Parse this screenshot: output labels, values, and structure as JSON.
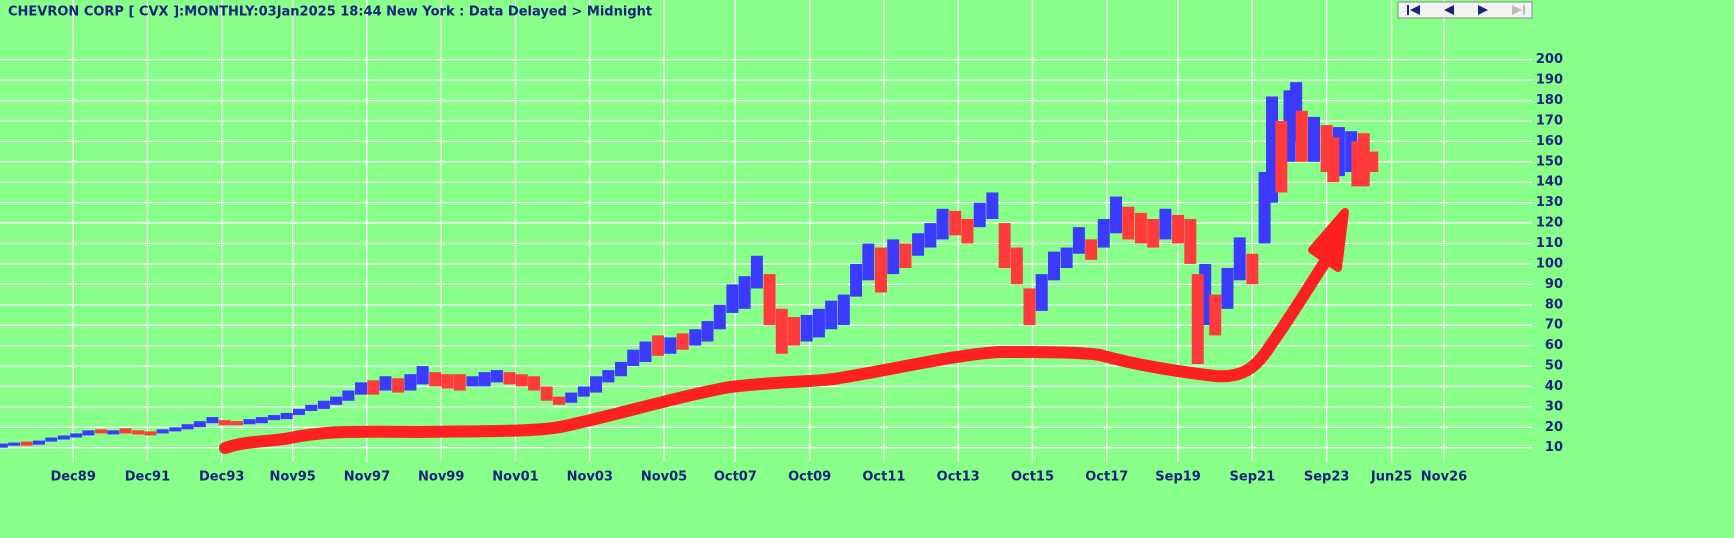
{
  "chart_data": {
    "type": "range-bar",
    "title": "CHEVRON CORP [ CVX ]:MONTHLY:03Jan2025 18:44 New York : Data Delayed > Midnight",
    "xlim": [
      1987.95,
      2029.2
    ],
    "ylim": [
      3,
      217
    ],
    "grid": true,
    "xticks": [
      {
        "value": 1989.92,
        "label": "Dec89"
      },
      {
        "value": 1991.92,
        "label": "Dec91"
      },
      {
        "value": 1993.92,
        "label": "Dec93"
      },
      {
        "value": 1995.83,
        "label": "Nov95"
      },
      {
        "value": 1997.83,
        "label": "Nov97"
      },
      {
        "value": 1999.83,
        "label": "Nov99"
      },
      {
        "value": 2001.83,
        "label": "Nov01"
      },
      {
        "value": 2003.83,
        "label": "Nov03"
      },
      {
        "value": 2005.83,
        "label": "Nov05"
      },
      {
        "value": 2007.75,
        "label": "Oct07"
      },
      {
        "value": 2009.75,
        "label": "Oct09"
      },
      {
        "value": 2011.75,
        "label": "Oct11"
      },
      {
        "value": 2013.75,
        "label": "Oct13"
      },
      {
        "value": 2015.75,
        "label": "Oct15"
      },
      {
        "value": 2017.75,
        "label": "Oct17"
      },
      {
        "value": 2019.67,
        "label": "Sep19"
      },
      {
        "value": 2021.67,
        "label": "Sep21"
      },
      {
        "value": 2023.67,
        "label": "Sep23"
      },
      {
        "value": 2025.42,
        "label": "Jun25"
      },
      {
        "value": 2026.83,
        "label": "Nov26"
      }
    ],
    "yticks": [
      10,
      20,
      30,
      40,
      50,
      60,
      70,
      80,
      90,
      100,
      110,
      120,
      130,
      140,
      150,
      160,
      170,
      180,
      190,
      200
    ],
    "series": [
      {
        "color": "#3b3bff",
        "x": [
          1988.0,
          1988.33,
          1989.0,
          1989.33,
          1989.67,
          1990.0,
          1990.33,
          1991.0,
          1992.33,
          1992.67,
          1993.0,
          1993.33,
          1993.67,
          1994.67,
          1995.0,
          1995.33,
          1995.67,
          1996.0,
          1996.33,
          1996.67,
          1997.0,
          1997.33,
          1997.67,
          1998.33,
          1999.0,
          1999.33,
          2000.67,
          2001.0,
          2001.33,
          2003.33,
          2003.67,
          2004.0,
          2004.33,
          2004.67,
          2005.0,
          2005.33,
          2006.0,
          2006.67,
          2007.0,
          2007.33,
          2007.67,
          2008.0,
          2008.33,
          2009.67,
          2010.0,
          2010.33,
          2010.67,
          2011.0,
          2011.33,
          2012.0,
          2012.67,
          2013.0,
          2013.33,
          2014.33,
          2014.67,
          2016.0,
          2016.33,
          2016.67,
          2017.0,
          2017.67,
          2018.0,
          2019.33,
          2020.4,
          2021.0,
          2021.33,
          2022.0,
          2022.2,
          2022.67,
          2022.85,
          2023.33,
          2024.0,
          2024.33
        ],
        "low": [
          10,
          11,
          11.5,
          13,
          14,
          15,
          16,
          16.5,
          17,
          18,
          19,
          20,
          22,
          21.5,
          22,
          23.5,
          24,
          26,
          28,
          29,
          31,
          33,
          36,
          38,
          38,
          41,
          40,
          40,
          42,
          32,
          35,
          37,
          42,
          45,
          50,
          52,
          56,
          60,
          62,
          68,
          76,
          78,
          88,
          62,
          64,
          68,
          70,
          84,
          92,
          95,
          104,
          108,
          112,
          118,
          122,
          77,
          92,
          98,
          105,
          108,
          115,
          112,
          70,
          78,
          92,
          110,
          130,
          150,
          160,
          150,
          143,
          145
        ],
        "high": [
          12,
          12.5,
          13.5,
          15,
          16,
          17,
          18.5,
          18.5,
          19,
          20,
          21.5,
          23,
          25,
          24,
          25,
          26,
          27,
          29,
          31,
          33,
          35,
          38,
          42,
          45,
          46,
          50,
          45,
          47,
          48,
          37,
          40,
          45,
          48,
          52,
          58,
          62,
          64,
          68,
          72,
          80,
          90,
          94,
          104,
          75,
          78,
          82,
          85,
          100,
          110,
          112,
          115,
          120,
          127,
          130,
          135,
          95,
          106,
          108,
          118,
          122,
          133,
          127,
          100,
          98,
          113,
          145,
          182,
          185,
          189,
          172,
          167,
          165
        ]
      },
      {
        "color": "#ff3b3b",
        "x": [
          1988.67,
          1990.67,
          1991.33,
          1991.67,
          1992.0,
          1994.0,
          1994.33,
          1998.0,
          1998.67,
          1999.67,
          2000.0,
          2000.33,
          2001.67,
          2002.0,
          2002.33,
          2002.67,
          2003.0,
          2005.67,
          2006.33,
          2008.67,
          2009.0,
          2009.33,
          2011.67,
          2012.33,
          2013.67,
          2014.0,
          2015.0,
          2015.33,
          2015.67,
          2017.33,
          2018.33,
          2018.67,
          2019.0,
          2019.67,
          2020.0,
          2020.2,
          2020.67,
          2021.67,
          2022.45,
          2023.0,
          2023.67,
          2023.85,
          2024.5,
          2024.67,
          2024.9
        ],
        "low": [
          11,
          17,
          17,
          16.5,
          16,
          21,
          21,
          36,
          37,
          40,
          39,
          38,
          41,
          40,
          38,
          33,
          31,
          55,
          58,
          70,
          56,
          60,
          86,
          98,
          114,
          110,
          98,
          90,
          70,
          102,
          112,
          110,
          108,
          110,
          100,
          51,
          65,
          90,
          135,
          150,
          145,
          140,
          138,
          138,
          145
        ],
        "high": [
          13,
          19,
          19.5,
          18.5,
          18,
          23.5,
          23,
          43,
          44,
          47,
          46,
          46,
          47,
          46,
          45,
          40,
          35,
          65,
          66,
          95,
          78,
          74,
          108,
          110,
          126,
          122,
          120,
          108,
          88,
          112,
          128,
          125,
          122,
          124,
          122,
          95,
          85,
          105,
          170,
          175,
          168,
          162,
          160,
          164,
          155
        ]
      }
    ]
  }
}
